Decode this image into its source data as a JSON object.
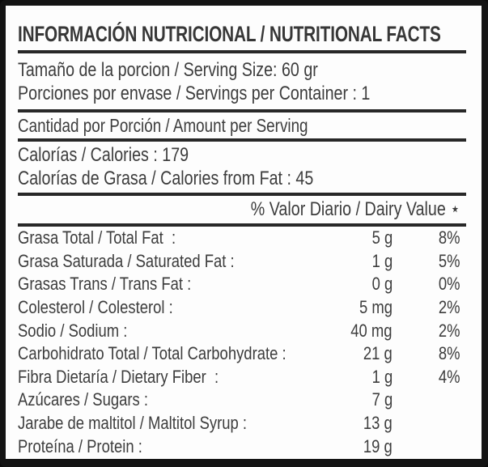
{
  "label": {
    "title": "INFORMACIÓN NUTRICIONAL / NUTRITIONAL FACTS",
    "serving": {
      "size": "Tamaño de la porcion / Serving Size: 60 gr",
      "per_container": "Porciones por envase / Servings per Container : 1"
    },
    "amount_per_serving": "Cantidad por Porción / Amount per Serving",
    "calories": "Calorías / Calories : 179",
    "calories_from_fat": "Calorías de Grasa / Calories from Fat : 45",
    "daily_value_header": "% Valor Diario / Dairy Value ⋆",
    "nutrients": [
      {
        "name": "Grasa Total / Total Fat  :",
        "amount": "5 g",
        "daily_value": "8%"
      },
      {
        "name": "Grasa Saturada / Saturated Fat :",
        "amount": "1 g",
        "daily_value": "5%"
      },
      {
        "name": "Grasas Trans / Trans Fat :",
        "amount": "0 g",
        "daily_value": "0%"
      },
      {
        "name": "Colesterol / Colesterol :",
        "amount": "5 mg",
        "daily_value": "2%"
      },
      {
        "name": "Sodio / Sodium :",
        "amount": "40 mg",
        "daily_value": "2%"
      },
      {
        "name": "Carbohidrato Total / Total Carbohydrate :",
        "amount": "21 g",
        "daily_value": "8%"
      },
      {
        "name": "Fibra Dietaría / Dietary Fiber  :",
        "amount": "1 g",
        "daily_value": "4%"
      },
      {
        "name": "Azúcares / Sugars :",
        "amount": "7 g",
        "daily_value": ""
      },
      {
        "name": "Jarabe de maltitol / Maltitol Syrup :",
        "amount": "13 g",
        "daily_value": ""
      },
      {
        "name": "Proteína / Protein :",
        "amount": "19 g",
        "daily_value": ""
      }
    ],
    "colors": {
      "text": "#3d3d3d",
      "rule": "#282828",
      "frame": "#141414",
      "background": "#fdfdfd"
    }
  }
}
